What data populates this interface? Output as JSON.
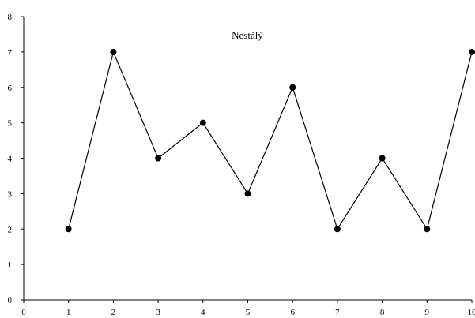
{
  "chart_data": {
    "type": "line",
    "title": "Nestálý",
    "xlabel": "",
    "ylabel": "",
    "x": [
      1,
      2,
      3,
      4,
      5,
      6,
      7,
      8,
      9,
      10
    ],
    "series": [
      {
        "values": [
          2,
          7,
          4,
          5,
          3,
          6,
          2,
          4,
          2,
          7
        ]
      }
    ],
    "xlim": [
      0,
      10
    ],
    "ylim": [
      0,
      8
    ],
    "x_ticks": [
      "0",
      "1",
      "2",
      "3",
      "4",
      "5",
      "6",
      "7",
      "8",
      "9",
      "10"
    ],
    "y_ticks": [
      "0",
      "1",
      "2",
      "3",
      "4",
      "5",
      "6",
      "7",
      "8"
    ],
    "grid": false,
    "legend": "none",
    "line_color": "#000000",
    "marker_color": "#000000"
  }
}
